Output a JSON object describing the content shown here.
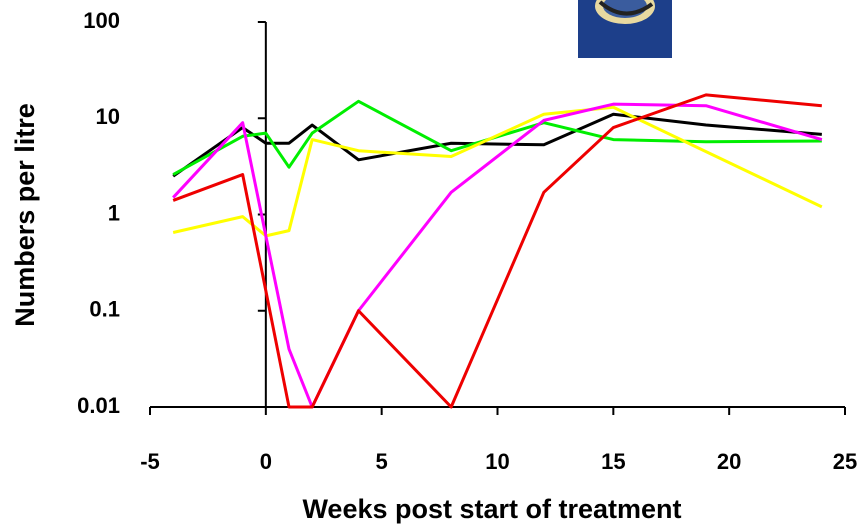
{
  "chart_data": {
    "type": "line",
    "x_label": "Weeks post start of treatment",
    "y_label": "Numbers per litre",
    "xlim": [
      -5,
      25
    ],
    "xticks": [
      -5,
      0,
      5,
      10,
      15,
      20,
      25
    ],
    "ylim": [
      0.01,
      100
    ],
    "yticks": [
      0.01,
      0.1,
      1,
      10,
      100
    ],
    "ylog": true,
    "y_axis_at_x": 0,
    "series": [
      {
        "color": "#000000",
        "x": [
          -4,
          -1,
          0,
          1,
          2,
          4,
          8,
          12,
          15,
          19,
          24
        ],
        "values": [
          2.5,
          8,
          5.5,
          5.5,
          8.5,
          3.7,
          5.5,
          5.3,
          11,
          8.5,
          6.8
        ]
      },
      {
        "color": "#00ee00",
        "x": [
          -4,
          -1,
          0,
          1,
          2,
          4,
          8,
          12,
          15,
          19,
          24
        ],
        "values": [
          2.6,
          6.5,
          7,
          3.1,
          7,
          15,
          4.6,
          9,
          6,
          5.7,
          5.8
        ]
      },
      {
        "color": "#ffff00",
        "x": [
          -4,
          -1,
          0,
          1,
          2,
          4,
          8,
          12,
          15,
          19,
          24
        ],
        "values": [
          0.65,
          0.95,
          0.6,
          0.68,
          6,
          4.6,
          4,
          11,
          13,
          4.5,
          1.2
        ]
      },
      {
        "color": "#ff00ff",
        "x": [
          -4,
          -1,
          1,
          2,
          4,
          8,
          12,
          15,
          19,
          24
        ],
        "values": [
          1.5,
          9,
          0.04,
          0.01,
          0.1,
          1.7,
          9.5,
          14,
          13.5,
          6
        ]
      },
      {
        "color": "#ee0000",
        "x": [
          -4,
          -1,
          1,
          2,
          4,
          8,
          12,
          15,
          19,
          24
        ],
        "values": [
          1.4,
          2.6,
          0.01,
          0.01,
          0.1,
          0.01,
          1.7,
          8,
          17.5,
          13.5
        ]
      }
    ]
  }
}
